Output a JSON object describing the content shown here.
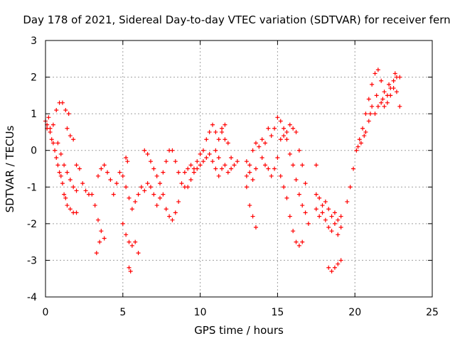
{
  "chart_data": {
    "type": "scatter",
    "title": "Day 178 of 2021, Sidereal Day-to-day VTEC variation (SDTVAR) for receiver fern",
    "xlabel": "GPS time / hours",
    "ylabel": "SDTVAR / TECUs",
    "xlim": [
      0,
      25
    ],
    "ylim": [
      -4,
      3
    ],
    "xticks": [
      "0",
      "5",
      "10",
      "15",
      "20",
      "25"
    ],
    "yticks": [
      "3",
      "2",
      "1",
      "0",
      "-1",
      "-2",
      "-3",
      "-4"
    ],
    "grid": true,
    "marker": "+",
    "color": "#ff0000",
    "series": [
      {
        "name": "SDTVAR",
        "points": [
          [
            0.0,
            0.8
          ],
          [
            0.1,
            0.6
          ],
          [
            0.2,
            0.9
          ],
          [
            0.3,
            0.5
          ],
          [
            0.4,
            0.3
          ],
          [
            0.5,
            0.2
          ],
          [
            0.6,
            0.0
          ],
          [
            0.7,
            -0.2
          ],
          [
            0.8,
            -0.4
          ],
          [
            0.9,
            -0.6
          ],
          [
            1.0,
            -0.7
          ],
          [
            1.1,
            -0.9
          ],
          [
            1.2,
            -1.2
          ],
          [
            1.3,
            -1.3
          ],
          [
            1.4,
            -1.5
          ],
          [
            1.6,
            -1.6
          ],
          [
            1.8,
            -1.7
          ],
          [
            2.0,
            -1.7
          ],
          [
            0.1,
            0.7
          ],
          [
            0.3,
            0.6
          ],
          [
            0.5,
            0.7
          ],
          [
            0.7,
            1.1
          ],
          [
            0.9,
            1.3
          ],
          [
            1.1,
            1.3
          ],
          [
            1.3,
            1.1
          ],
          [
            1.5,
            1.0
          ],
          [
            0.8,
            0.2
          ],
          [
            1.0,
            -0.1
          ],
          [
            1.2,
            -0.4
          ],
          [
            1.4,
            -0.6
          ],
          [
            1.6,
            -0.8
          ],
          [
            1.8,
            -1.0
          ],
          [
            2.0,
            -1.1
          ],
          [
            1.4,
            0.6
          ],
          [
            1.6,
            0.4
          ],
          [
            1.8,
            0.3
          ],
          [
            2.0,
            -0.4
          ],
          [
            2.2,
            -0.5
          ],
          [
            2.4,
            -0.9
          ],
          [
            2.6,
            -1.1
          ],
          [
            2.8,
            -1.2
          ],
          [
            3.0,
            -1.2
          ],
          [
            3.2,
            -1.5
          ],
          [
            3.4,
            -1.9
          ],
          [
            3.6,
            -2.2
          ],
          [
            3.8,
            -2.4
          ],
          [
            3.3,
            -2.8
          ],
          [
            3.5,
            -2.5
          ],
          [
            3.4,
            -0.7
          ],
          [
            3.6,
            -0.5
          ],
          [
            3.8,
            -0.4
          ],
          [
            4.0,
            -0.6
          ],
          [
            4.2,
            -0.8
          ],
          [
            4.4,
            -1.2
          ],
          [
            4.6,
            -0.9
          ],
          [
            4.8,
            -0.6
          ],
          [
            5.0,
            -0.7
          ],
          [
            5.2,
            -1.0
          ],
          [
            5.4,
            -1.3
          ],
          [
            5.6,
            -1.6
          ],
          [
            5.8,
            -1.4
          ],
          [
            6.0,
            -1.2
          ],
          [
            6.2,
            -1.0
          ],
          [
            6.4,
            -1.1
          ],
          [
            6.6,
            -0.9
          ],
          [
            6.8,
            -1.0
          ],
          [
            7.0,
            -1.2
          ],
          [
            7.2,
            -1.5
          ],
          [
            7.4,
            -1.3
          ],
          [
            7.6,
            -1.2
          ],
          [
            5.0,
            -2.0
          ],
          [
            5.2,
            -2.3
          ],
          [
            5.4,
            -2.5
          ],
          [
            5.6,
            -2.6
          ],
          [
            5.8,
            -2.5
          ],
          [
            6.0,
            -2.8
          ],
          [
            5.4,
            -3.2
          ],
          [
            5.5,
            -3.3
          ],
          [
            5.2,
            -0.2
          ],
          [
            5.3,
            -0.3
          ],
          [
            6.4,
            0.0
          ],
          [
            6.6,
            -0.1
          ],
          [
            6.8,
            -0.3
          ],
          [
            7.0,
            -0.5
          ],
          [
            7.2,
            -0.7
          ],
          [
            7.4,
            -0.9
          ],
          [
            7.6,
            -0.6
          ],
          [
            7.8,
            -0.3
          ],
          [
            8.0,
            0.0
          ],
          [
            8.2,
            0.0
          ],
          [
            8.4,
            -0.3
          ],
          [
            8.6,
            -0.6
          ],
          [
            8.8,
            -0.9
          ],
          [
            9.0,
            -1.0
          ],
          [
            7.8,
            -1.6
          ],
          [
            8.0,
            -1.8
          ],
          [
            8.2,
            -1.9
          ],
          [
            8.4,
            -1.7
          ],
          [
            8.6,
            -1.4
          ],
          [
            9.2,
            -1.0
          ],
          [
            9.4,
            -0.8
          ],
          [
            9.6,
            -0.5
          ],
          [
            9.8,
            -0.3
          ],
          [
            10.0,
            -0.1
          ],
          [
            10.2,
            0.0
          ],
          [
            10.4,
            0.3
          ],
          [
            10.6,
            0.5
          ],
          [
            10.8,
            0.7
          ],
          [
            11.0,
            0.5
          ],
          [
            11.2,
            0.3
          ],
          [
            11.4,
            0.5
          ],
          [
            11.6,
            0.3
          ],
          [
            11.8,
            0.2
          ],
          [
            12.0,
            -0.2
          ],
          [
            12.2,
            -0.4
          ],
          [
            12.4,
            -0.3
          ],
          [
            9.0,
            -0.6
          ],
          [
            9.2,
            -0.5
          ],
          [
            9.4,
            -0.4
          ],
          [
            9.6,
            -0.6
          ],
          [
            9.8,
            -0.5
          ],
          [
            10.0,
            -0.4
          ],
          [
            10.2,
            -0.3
          ],
          [
            10.4,
            -0.2
          ],
          [
            10.6,
            -0.1
          ],
          [
            10.8,
            -0.3
          ],
          [
            11.0,
            -0.5
          ],
          [
            11.2,
            -0.7
          ],
          [
            11.4,
            0.6
          ],
          [
            11.6,
            0.7
          ],
          [
            11.0,
            0.0
          ],
          [
            11.2,
            -0.2
          ],
          [
            11.4,
            -0.5
          ],
          [
            11.6,
            -0.4
          ],
          [
            11.8,
            -0.6
          ],
          [
            12.0,
            -0.5
          ],
          [
            13.0,
            -0.3
          ],
          [
            13.2,
            -0.6
          ],
          [
            13.4,
            -0.8
          ],
          [
            13.6,
            -0.5
          ],
          [
            13.0,
            -1.0
          ],
          [
            13.2,
            -1.5
          ],
          [
            13.4,
            -1.8
          ],
          [
            13.6,
            -2.1
          ],
          [
            13.0,
            -0.7
          ],
          [
            13.2,
            -0.4
          ],
          [
            13.4,
            0.0
          ],
          [
            13.6,
            0.2
          ],
          [
            13.8,
            0.1
          ],
          [
            14.0,
            -0.2
          ],
          [
            14.2,
            -0.4
          ],
          [
            14.4,
            -0.5
          ],
          [
            14.6,
            -0.7
          ],
          [
            14.8,
            -0.5
          ],
          [
            15.0,
            -0.2
          ],
          [
            15.2,
            0.3
          ],
          [
            15.4,
            0.6
          ],
          [
            15.6,
            0.5
          ],
          [
            15.8,
            0.7
          ],
          [
            16.0,
            0.6
          ],
          [
            16.2,
            0.5
          ],
          [
            16.4,
            0.0
          ],
          [
            16.6,
            -0.4
          ],
          [
            16.8,
            -0.9
          ],
          [
            14.0,
            0.3
          ],
          [
            14.2,
            0.2
          ],
          [
            14.4,
            0.6
          ],
          [
            14.6,
            0.4
          ],
          [
            14.8,
            0.6
          ],
          [
            15.0,
            0.9
          ],
          [
            15.2,
            0.8
          ],
          [
            15.4,
            0.4
          ],
          [
            15.6,
            0.3
          ],
          [
            15.8,
            -0.1
          ],
          [
            16.0,
            -0.4
          ],
          [
            16.2,
            -0.8
          ],
          [
            16.4,
            -1.2
          ],
          [
            16.6,
            -1.5
          ],
          [
            16.8,
            -1.7
          ],
          [
            17.0,
            -2.0
          ],
          [
            15.2,
            -0.7
          ],
          [
            15.4,
            -1.0
          ],
          [
            15.6,
            -1.3
          ],
          [
            15.8,
            -1.8
          ],
          [
            16.0,
            -2.2
          ],
          [
            16.2,
            -2.5
          ],
          [
            16.4,
            -2.6
          ],
          [
            16.6,
            -2.5
          ],
          [
            17.5,
            -1.6
          ],
          [
            17.7,
            -1.8
          ],
          [
            17.9,
            -1.7
          ],
          [
            18.1,
            -1.9
          ],
          [
            18.3,
            -2.1
          ],
          [
            18.5,
            -2.2
          ],
          [
            18.7,
            -2.0
          ],
          [
            18.9,
            -2.3
          ],
          [
            19.1,
            -2.1
          ],
          [
            17.5,
            -1.2
          ],
          [
            17.7,
            -1.3
          ],
          [
            17.9,
            -1.5
          ],
          [
            18.1,
            -1.4
          ],
          [
            18.3,
            -1.6
          ],
          [
            18.5,
            -1.8
          ],
          [
            18.7,
            -1.7
          ],
          [
            18.9,
            -1.9
          ],
          [
            19.1,
            -1.8
          ],
          [
            17.5,
            -0.4
          ],
          [
            18.3,
            -3.2
          ],
          [
            18.5,
            -3.3
          ],
          [
            18.7,
            -3.2
          ],
          [
            18.9,
            -3.1
          ],
          [
            19.1,
            -3.0
          ],
          [
            19.5,
            -1.4
          ],
          [
            19.7,
            -1.0
          ],
          [
            19.9,
            -0.5
          ],
          [
            20.1,
            0.0
          ],
          [
            20.3,
            0.3
          ],
          [
            20.5,
            0.6
          ],
          [
            20.7,
            1.0
          ],
          [
            20.9,
            1.4
          ],
          [
            21.1,
            1.8
          ],
          [
            21.3,
            2.1
          ],
          [
            21.5,
            2.2
          ],
          [
            21.7,
            1.9
          ],
          [
            21.9,
            1.6
          ],
          [
            22.1,
            1.5
          ],
          [
            22.3,
            1.7
          ],
          [
            22.5,
            1.9
          ],
          [
            22.7,
            2.0
          ],
          [
            22.9,
            2.0
          ],
          [
            20.7,
            0.5
          ],
          [
            20.9,
            0.8
          ],
          [
            21.1,
            1.2
          ],
          [
            21.3,
            1.0
          ],
          [
            21.5,
            1.2
          ],
          [
            21.7,
            1.3
          ],
          [
            21.9,
            1.2
          ],
          [
            22.1,
            1.3
          ],
          [
            22.3,
            1.5
          ],
          [
            22.5,
            1.7
          ],
          [
            22.7,
            1.6
          ],
          [
            22.9,
            1.2
          ],
          [
            20.2,
            0.1
          ],
          [
            20.4,
            0.2
          ],
          [
            20.6,
            0.4
          ],
          [
            21.0,
            1.0
          ],
          [
            21.4,
            1.5
          ],
          [
            21.8,
            1.4
          ],
          [
            22.2,
            1.8
          ],
          [
            22.6,
            2.1
          ]
        ]
      }
    ]
  }
}
